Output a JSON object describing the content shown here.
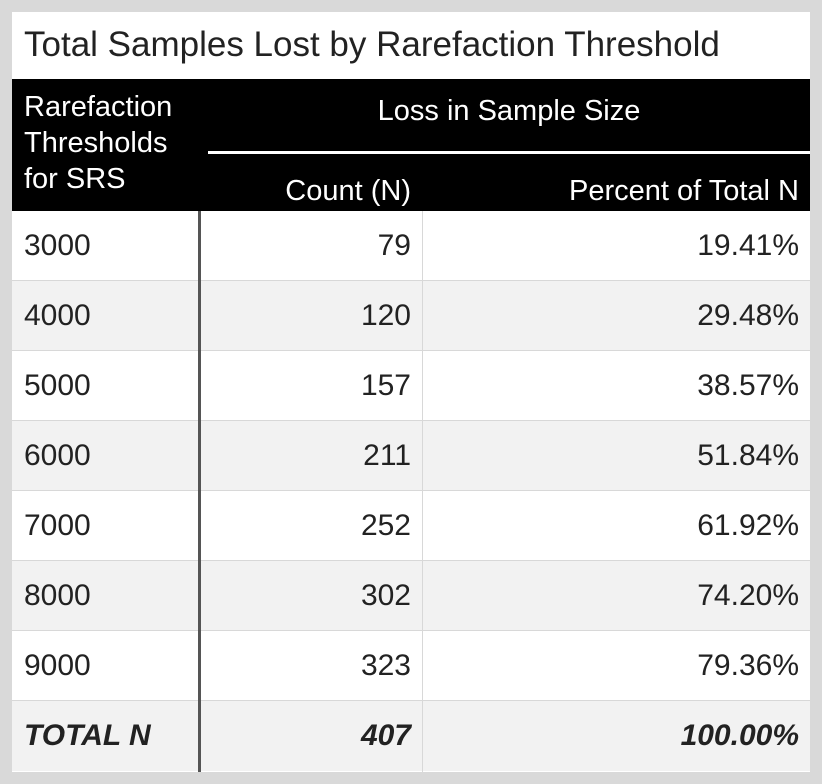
{
  "title": "Total Samples Lost by Rarefaction Threshold",
  "header": {
    "stub_lines": [
      "Rarefaction",
      "Thresholds",
      "for SRS"
    ],
    "spanner": "Loss in Sample Size",
    "col_count": "Count (N)",
    "col_percent": "Percent of Total N"
  },
  "rows": [
    {
      "threshold": "3000",
      "count": "79",
      "percent": "19.41%"
    },
    {
      "threshold": "4000",
      "count": "120",
      "percent": "29.48%"
    },
    {
      "threshold": "5000",
      "count": "157",
      "percent": "38.57%"
    },
    {
      "threshold": "6000",
      "count": "211",
      "percent": "51.84%"
    },
    {
      "threshold": "7000",
      "count": "252",
      "percent": "61.92%"
    },
    {
      "threshold": "8000",
      "count": "302",
      "percent": "74.20%"
    },
    {
      "threshold": "9000",
      "count": "323",
      "percent": "79.36%"
    }
  ],
  "total": {
    "label": "TOTAL N",
    "count": "407",
    "percent": "100.00%"
  }
}
